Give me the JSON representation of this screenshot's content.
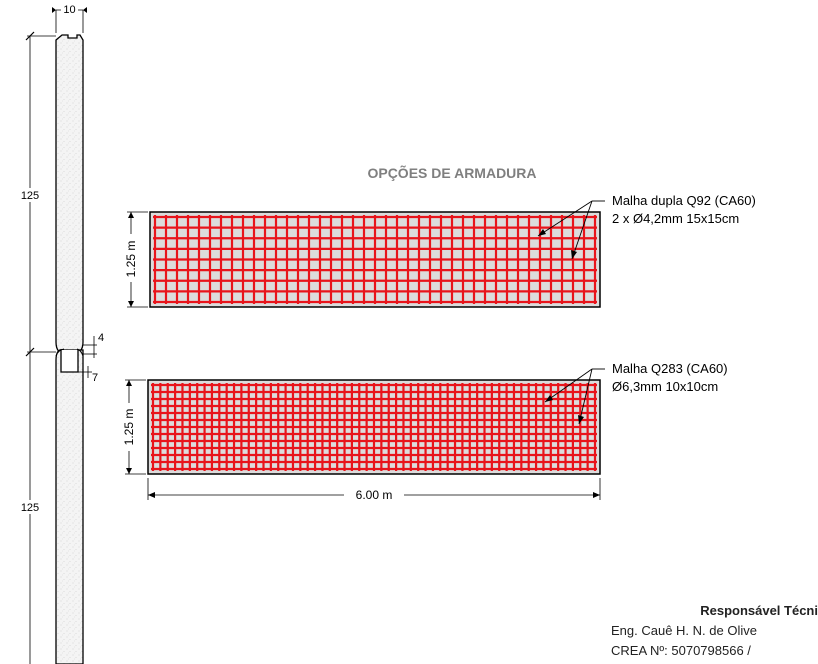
{
  "title": "OPÇÕES DE ARMADURA",
  "panel_dimensions": {
    "top_section": "10",
    "upper_height": "125",
    "joint_gap": "4",
    "joint_width": "7",
    "lower_height": "125"
  },
  "mesh_top": {
    "name": "Malha dupla Q92 (CA60)",
    "spec": "2 x Ø4,2mm 15x15cm",
    "height_label": "1.25 m",
    "color": "#e8141b"
  },
  "mesh_bottom": {
    "name": "Malha Q283 (CA60)",
    "spec": "Ø6,3mm 10x10cm",
    "height_label": "1.25 m",
    "width_label": "6.00 m",
    "color": "#e8141b"
  },
  "responsible": {
    "title": "Responsável Técni",
    "engineer": "Eng. Cauê H. N. de Olive",
    "crea": "CREA Nº: 5070798566 /"
  }
}
